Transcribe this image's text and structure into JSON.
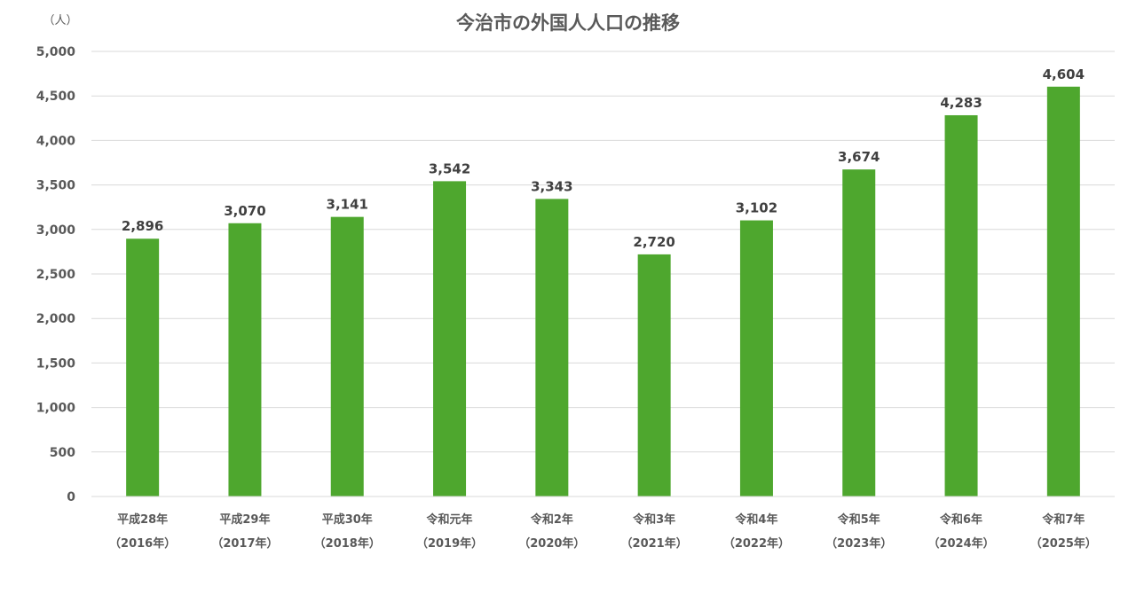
{
  "chart_data": {
    "type": "bar",
    "title": "今治市の外国人人口の推移",
    "unit_label": "（人）",
    "categories": [
      [
        "平成28年",
        "（2016年）"
      ],
      [
        "平成29年",
        "（2017年）"
      ],
      [
        "平成30年",
        "（2018年）"
      ],
      [
        "令和元年",
        "（2019年）"
      ],
      [
        "令和2年",
        "（2020年）"
      ],
      [
        "令和3年",
        "（2021年）"
      ],
      [
        "令和4年",
        "（2022年）"
      ],
      [
        "令和5年",
        "（2023年）"
      ],
      [
        "令和6年",
        "（2024年）"
      ],
      [
        "令和7年",
        "（2025年）"
      ]
    ],
    "values": [
      2896,
      3070,
      3141,
      3542,
      3343,
      2720,
      3102,
      3674,
      4283,
      4604
    ],
    "value_labels": [
      "2,896",
      "3,070",
      "3,141",
      "3,542",
      "3,343",
      "2,720",
      "3,102",
      "3,674",
      "4,283",
      "4,604"
    ],
    "ylim": [
      0,
      5000
    ],
    "yticks": [
      0,
      500,
      1000,
      1500,
      2000,
      2500,
      3000,
      3500,
      4000,
      4500,
      5000
    ],
    "ytick_labels": [
      "0",
      "500",
      "1,000",
      "1,500",
      "2,000",
      "2,500",
      "3,000",
      "3,500",
      "4,000",
      "4,500",
      "5,000"
    ],
    "bar_color": "#4ea72e",
    "grid": true,
    "legend": "none"
  }
}
